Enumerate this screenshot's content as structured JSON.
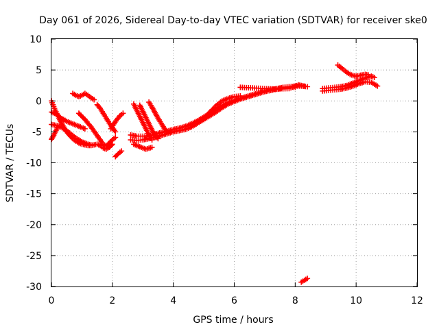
{
  "chart_data": {
    "type": "scatter",
    "title": "Day 061 of 2026, Sidereal Day-to-day VTEC variation (SDTVAR) for receiver ske0",
    "xlabel": "GPS time / hours",
    "ylabel": "SDTVAR / TECUs",
    "xlim": [
      0,
      12
    ],
    "ylim": [
      -30,
      10
    ],
    "xticks": [
      0,
      2,
      4,
      6,
      8,
      10,
      12
    ],
    "yticks": [
      -30,
      -25,
      -20,
      -15,
      -10,
      -5,
      0,
      5,
      10
    ],
    "xtick_labels": [
      "0",
      "2",
      "4",
      "6",
      "8",
      "10",
      "12"
    ],
    "ytick_labels": [
      "-30",
      "-25",
      "-20",
      "-15",
      "-10",
      "-5",
      "0",
      "5",
      "10"
    ],
    "grid": true,
    "marker": "plus",
    "color": "#ff0000",
    "series": [
      {
        "name": "arc1",
        "x": [
          0.0,
          0.1,
          0.2,
          0.3,
          0.4,
          0.5,
          0.6,
          0.7,
          0.8,
          0.9,
          1.0,
          1.1,
          1.2,
          1.3,
          1.4,
          1.5,
          1.6,
          1.7,
          1.8,
          1.9,
          2.0
        ],
        "y": [
          0.0,
          -1.2,
          -2.3,
          -3.3,
          -4.2,
          -5.0,
          -5.6,
          -6.1,
          -6.5,
          -6.8,
          -7.0,
          -7.1,
          -7.2,
          -7.2,
          -7.1,
          -7.0,
          -7.2,
          -7.6,
          -7.8,
          -7.5,
          -7.0
        ]
      },
      {
        "name": "arc2",
        "x": [
          0.0,
          0.1,
          0.2,
          0.3,
          0.4,
          0.5,
          0.6,
          0.7,
          0.8,
          0.9,
          1.0,
          1.1
        ],
        "y": [
          -1.8,
          -2.0,
          -2.3,
          -2.7,
          -3.0,
          -3.3,
          -3.5,
          -3.7,
          -3.9,
          -4.1,
          -4.3,
          -4.5
        ]
      },
      {
        "name": "arc3",
        "x": [
          0.0,
          0.1,
          0.2,
          0.3,
          0.4,
          0.5,
          0.6,
          0.7,
          0.8,
          0.9,
          1.0,
          1.1,
          1.2,
          1.3
        ],
        "y": [
          -3.8,
          -3.9,
          -4.0,
          -4.2,
          -4.5,
          -4.8,
          -5.2,
          -5.6,
          -6.0,
          -6.3,
          -6.6,
          -6.8,
          -7.0,
          -7.1
        ]
      },
      {
        "name": "arc4",
        "x": [
          0.0,
          0.05,
          0.1,
          0.15,
          0.2
        ],
        "y": [
          -6.2,
          -5.8,
          -5.3,
          -4.8,
          -4.3
        ]
      },
      {
        "name": "arc5",
        "x": [
          0.7,
          0.8,
          0.9,
          1.0,
          1.1,
          1.2,
          1.3,
          1.4
        ],
        "y": [
          1.2,
          0.9,
          0.7,
          0.9,
          1.2,
          0.9,
          0.5,
          0.2
        ]
      },
      {
        "name": "arc6",
        "x": [
          0.9,
          1.0,
          1.1,
          1.2,
          1.3,
          1.4,
          1.5,
          1.6,
          1.7,
          1.8,
          1.9,
          2.0,
          2.1
        ],
        "y": [
          -2.0,
          -2.5,
          -3.0,
          -3.6,
          -4.2,
          -4.9,
          -5.6,
          -6.3,
          -7.0,
          -7.3,
          -6.8,
          -6.3,
          -5.9
        ]
      },
      {
        "name": "arc7",
        "x": [
          1.5,
          1.6,
          1.7,
          1.8,
          1.9,
          2.0,
          2.1
        ],
        "y": [
          -0.6,
          -1.2,
          -2.0,
          -2.8,
          -3.6,
          -4.3,
          -5.0
        ]
      },
      {
        "name": "arc8",
        "x": [
          1.95,
          2.05,
          2.15,
          2.25,
          2.35
        ],
        "y": [
          -4.5,
          -3.7,
          -3.0,
          -2.4,
          -2.0
        ]
      },
      {
        "name": "arc9",
        "x": [
          2.1,
          2.2,
          2.3
        ],
        "y": [
          -9.0,
          -8.5,
          -8.1
        ]
      },
      {
        "name": "arc10",
        "x": [
          2.6,
          2.8,
          3.0,
          3.2,
          3.4,
          3.6,
          3.8,
          4.0,
          4.2,
          4.4,
          4.6,
          4.8,
          5.0,
          5.2,
          5.4,
          5.6,
          5.8,
          6.0,
          6.2,
          6.4,
          6.6,
          6.8,
          7.0,
          7.2,
          7.4,
          7.6,
          7.8,
          8.0,
          8.2,
          8.4
        ],
        "y": [
          -5.5,
          -5.7,
          -5.7,
          -5.6,
          -5.4,
          -5.1,
          -4.9,
          -4.6,
          -4.4,
          -4.1,
          -3.7,
          -3.2,
          -2.6,
          -2.0,
          -1.4,
          -0.8,
          -0.3,
          0.1,
          0.4,
          0.7,
          1.0,
          1.3,
          1.6,
          1.8,
          2.0,
          2.2,
          2.3,
          2.4,
          2.4,
          2.3
        ]
      },
      {
        "name": "arc11",
        "x": [
          2.6,
          2.8,
          3.0,
          3.2,
          3.4,
          3.6,
          3.8,
          4.0,
          4.2,
          4.4,
          4.6,
          4.8,
          5.0,
          5.2,
          5.4,
          5.6,
          5.8,
          6.0,
          6.2,
          6.4,
          6.6,
          6.8,
          7.0,
          7.2,
          7.4,
          7.6,
          7.8,
          8.0
        ],
        "y": [
          -6.3,
          -6.4,
          -6.3,
          -6.1,
          -5.9,
          -5.6,
          -5.3,
          -5.0,
          -4.8,
          -4.6,
          -4.2,
          -3.6,
          -3.0,
          -2.4,
          -1.8,
          -1.1,
          -0.5,
          -0.1,
          0.3,
          0.6,
          0.9,
          1.2,
          1.5,
          1.7,
          1.9,
          2.1,
          2.2,
          2.2
        ]
      },
      {
        "name": "arc12",
        "x": [
          2.7,
          2.9,
          3.1,
          3.3
        ],
        "y": [
          -7.0,
          -7.4,
          -7.8,
          -7.5
        ]
      },
      {
        "name": "arc13",
        "x": [
          2.7,
          2.8,
          2.9,
          3.0,
          3.1,
          3.2,
          3.3
        ],
        "y": [
          -0.5,
          -1.5,
          -2.5,
          -3.5,
          -4.5,
          -5.5,
          -6.3
        ]
      },
      {
        "name": "arc14",
        "x": [
          2.9,
          3.0,
          3.1,
          3.2,
          3.3,
          3.4,
          3.5
        ],
        "y": [
          -0.7,
          -1.7,
          -2.7,
          -3.7,
          -4.7,
          -5.6,
          -6.1
        ]
      },
      {
        "name": "arc15",
        "x": [
          3.2,
          3.3,
          3.4,
          3.5,
          3.6,
          3.7,
          3.8
        ],
        "y": [
          -0.2,
          -1.0,
          -1.9,
          -2.8,
          -3.6,
          -4.4,
          -5.0
        ]
      },
      {
        "name": "arc16",
        "x": [
          5.0,
          5.2,
          5.4,
          5.6,
          5.8,
          6.0,
          6.2
        ],
        "y": [
          -3.0,
          -1.8,
          -0.8,
          0.0,
          0.4,
          0.7,
          0.8
        ]
      },
      {
        "name": "arc17",
        "x": [
          6.2,
          6.6,
          7.0,
          7.4,
          7.8,
          8.1,
          8.3
        ],
        "y": [
          2.2,
          2.1,
          2.0,
          1.9,
          2.0,
          2.6,
          2.4
        ]
      },
      {
        "name": "arc18",
        "x": [
          8.2,
          8.3,
          8.4
        ],
        "y": [
          -29.3,
          -29.0,
          -28.7
        ]
      },
      {
        "name": "arc19",
        "x": [
          8.9,
          9.1,
          9.3,
          9.5,
          9.7,
          9.9,
          10.1,
          10.3,
          10.5,
          10.6
        ],
        "y": [
          2.0,
          2.1,
          2.2,
          2.3,
          2.5,
          2.9,
          3.3,
          3.7,
          4.0,
          3.8
        ]
      },
      {
        "name": "arc20",
        "x": [
          8.9,
          9.1,
          9.3,
          9.5,
          9.7,
          9.9,
          10.1,
          10.3,
          10.5,
          10.7
        ],
        "y": [
          1.6,
          1.7,
          1.8,
          1.9,
          2.1,
          2.4,
          2.8,
          3.1,
          3.0,
          2.4
        ]
      },
      {
        "name": "arc21",
        "x": [
          9.4,
          9.5,
          9.6,
          9.7,
          9.8,
          9.9,
          10.0,
          10.1,
          10.2,
          10.3,
          10.4
        ],
        "y": [
          5.8,
          5.4,
          5.0,
          4.6,
          4.3,
          4.1,
          4.0,
          4.1,
          4.2,
          4.3,
          4.2
        ]
      }
    ]
  }
}
